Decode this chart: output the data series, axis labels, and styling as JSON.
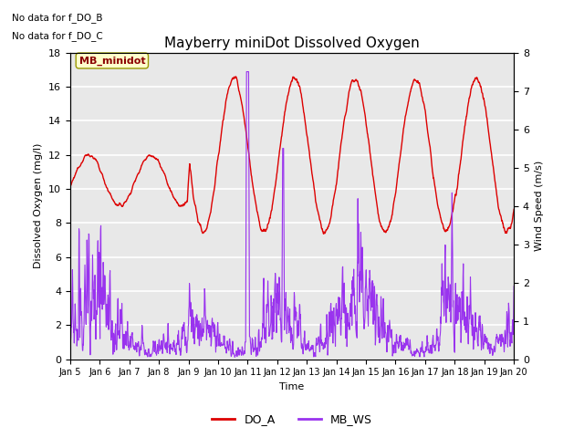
{
  "title": "Mayberry miniDot Dissolved Oxygen",
  "xlabel": "Time",
  "ylabel_left": "Dissolved Oxygen (mg/l)",
  "ylabel_right": "Wind Speed (m/s)",
  "annotations": [
    "No data for f_DO_B",
    "No data for f_DO_C"
  ],
  "legend_box_label": "MB_minidot",
  "legend_entries": [
    "DO_A",
    "MB_WS"
  ],
  "do_color": "#dd0000",
  "ws_color": "#9933ee",
  "ylim_left": [
    0,
    18
  ],
  "ylim_right": [
    0.0,
    8.0
  ],
  "yticks_left": [
    0,
    2,
    4,
    6,
    8,
    10,
    12,
    14,
    16,
    18
  ],
  "yticks_right": [
    0.0,
    1.0,
    2.0,
    3.0,
    4.0,
    5.0,
    6.0,
    7.0,
    8.0
  ],
  "xtick_labels": [
    "Jan 5",
    "Jan 6",
    "Jan 7",
    "Jan 8",
    "Jan 9",
    "Jan 10",
    "Jan 11",
    "Jan 12",
    "Jan 13",
    "Jan 14",
    "Jan 15",
    "Jan 16",
    "Jan 17",
    "Jan 18",
    "Jan 19",
    "Jan 20"
  ],
  "figsize": [
    6.4,
    4.8
  ],
  "dpi": 100,
  "plot_bg_color": "#e8e8e8",
  "grid_color": "white",
  "n_points": 1500
}
